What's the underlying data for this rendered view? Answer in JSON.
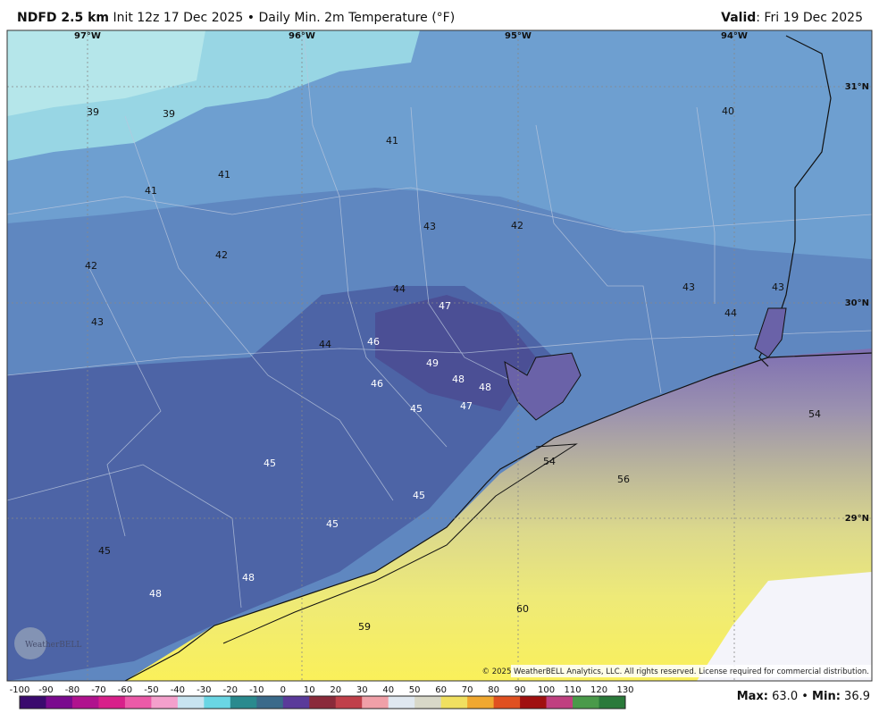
{
  "header": {
    "model": "NDFD 2.5 km",
    "description": "Init 12z 17 Dec 2025 • Daily Min. 2m Temperature (°F)",
    "valid_label": "Valid",
    "valid_date": ": Fri 19 Dec 2025"
  },
  "longitude_labels": [
    "97°W",
    "96°W",
    "95°W",
    "94°W"
  ],
  "latitude_labels": [
    "31°N",
    "30°N",
    "29°N"
  ],
  "station_values": [
    39,
    39,
    41,
    40,
    41,
    41,
    43,
    42,
    42,
    42,
    44,
    47,
    43,
    43,
    44,
    43,
    44,
    46,
    49,
    48,
    48,
    46,
    45,
    47,
    54,
    45,
    54,
    56,
    45,
    45,
    45,
    48,
    48,
    60,
    59
  ],
  "colorbar_ticks": [
    -100,
    -90,
    -80,
    -70,
    -60,
    -50,
    -40,
    -30,
    -20,
    -10,
    0,
    10,
    20,
    30,
    40,
    50,
    60,
    70,
    80,
    90,
    100,
    110,
    120,
    130
  ],
  "logo": "WeatherBELL",
  "copyright": "© 2025 WeatherBELL Analytics, LLC. All rights reserved. License required for commercial distribution.",
  "summary": {
    "max_label": "Max:",
    "max_value": "63.0",
    "separator": "•",
    "min_label": "Min:",
    "min_value": "36.9"
  }
}
